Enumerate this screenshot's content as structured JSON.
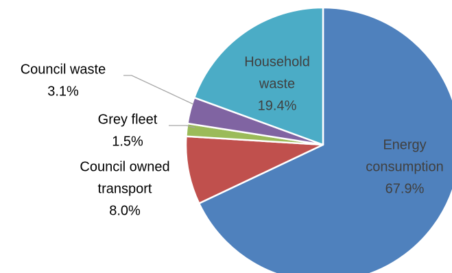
{
  "chart_data": {
    "type": "pie",
    "title": "",
    "start_angle_deg": 90,
    "direction": "clockwise",
    "legend": "none",
    "slices": [
      {
        "category": "Energy consumption",
        "label_lines": [
          "Energy",
          "consumption"
        ],
        "value": 67.9,
        "value_label": "67.9%",
        "color": "#4f81bd",
        "label_position": "inside",
        "label_color": "#404040"
      },
      {
        "category": "Council owned transport",
        "label_lines": [
          "Council owned",
          "transport"
        ],
        "value": 8.0,
        "value_label": "8.0%",
        "color": "#c0504d",
        "label_position": "outside",
        "label_color": "#000000"
      },
      {
        "category": "Grey fleet",
        "label_lines": [
          "Grey fleet"
        ],
        "value": 1.5,
        "value_label": "1.5%",
        "color": "#9bbb59",
        "label_position": "outside",
        "label_color": "#000000"
      },
      {
        "category": "Council waste",
        "label_lines": [
          "Council waste"
        ],
        "value": 3.1,
        "value_label": "3.1%",
        "color": "#8064a2",
        "label_position": "outside",
        "label_color": "#000000"
      },
      {
        "category": "Household waste",
        "label_lines": [
          "Household",
          "waste"
        ],
        "value": 19.4,
        "value_label": "19.4%",
        "color": "#4bacc6",
        "label_position": "inside",
        "label_color": "#404040"
      }
    ]
  }
}
